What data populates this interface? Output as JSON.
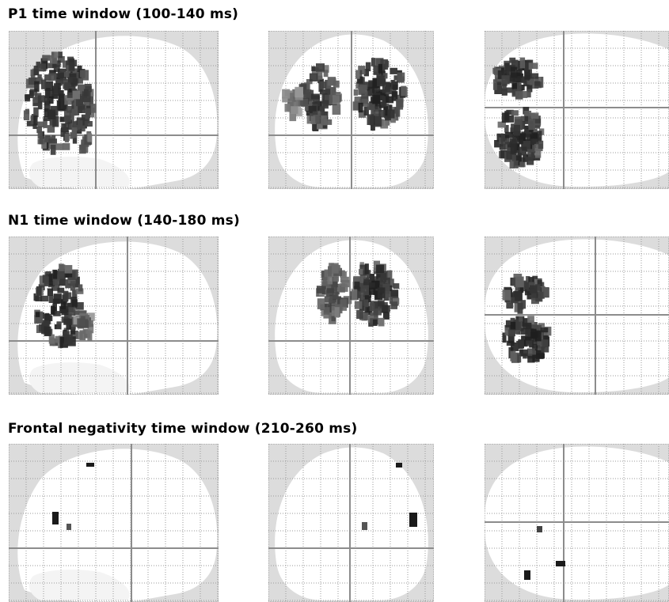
{
  "rows": [
    {
      "title": "P1 time window (100-140 ms)"
    },
    {
      "title": "N1 time window (140-180 ms)"
    },
    {
      "title": "Frontal negativity time window (210-260 ms)"
    }
  ],
  "colors": {
    "background": "#ffffff",
    "outside_brain": "#dcdcdc",
    "grid_dotted": "#9a9a9a",
    "crosshair": "#8c8c8c",
    "activation_dark": "#1a1a1a",
    "activation_light": "#b0b0b0"
  },
  "views": [
    "sagittal",
    "coronal",
    "axial"
  ]
}
